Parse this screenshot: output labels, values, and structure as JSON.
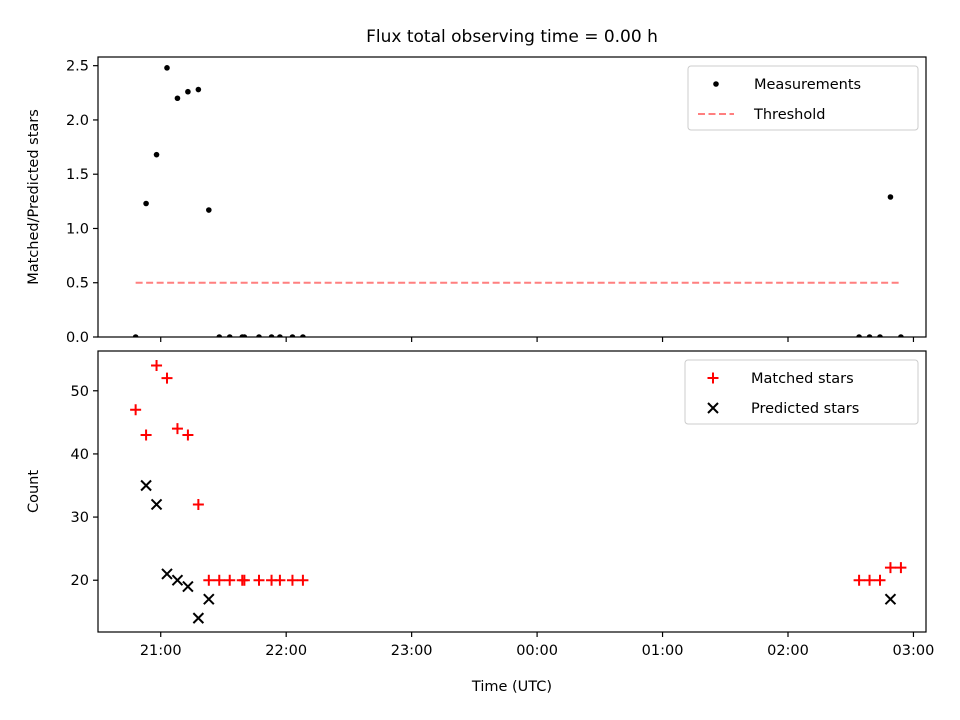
{
  "chart_data": {
    "title": "Flux total observing time = 0.00 h",
    "xlabel": "Time (UTC)",
    "x_range": [
      "20:30",
      "03:06"
    ],
    "x_tick_labels": [
      "21:00",
      "22:00",
      "23:00",
      "00:00",
      "01:00",
      "02:00",
      "03:00"
    ],
    "panels": [
      {
        "type": "scatter",
        "ylabel": "Matched/Predicted stars",
        "ylim": [
          0,
          2.58
        ],
        "y_ticks": [
          "0.0",
          "0.5",
          "1.0",
          "1.5",
          "2.0",
          "2.5"
        ],
        "legend_position": "top-right",
        "series": [
          {
            "name": "Measurements",
            "color": "#000000",
            "marker": "dot",
            "points": [
              [
                "20:48",
                0.0
              ],
              [
                "20:53",
                1.23
              ],
              [
                "20:58",
                1.68
              ],
              [
                "21:03",
                2.48
              ],
              [
                "21:08",
                2.2
              ],
              [
                "21:13",
                2.26
              ],
              [
                "21:18",
                2.28
              ],
              [
                "21:23",
                1.17
              ],
              [
                "21:28",
                0.0
              ],
              [
                "21:33",
                0.0
              ],
              [
                "21:39",
                0.0
              ],
              [
                "21:40",
                0.0
              ],
              [
                "21:47",
                0.0
              ],
              [
                "21:53",
                0.0
              ],
              [
                "21:57",
                0.0
              ],
              [
                "22:03",
                0.0
              ],
              [
                "22:08",
                0.0
              ],
              [
                "02:34",
                0.0
              ],
              [
                "02:39",
                0.0
              ],
              [
                "02:44",
                0.0
              ],
              [
                "02:49",
                1.29
              ],
              [
                "02:54",
                0.0
              ]
            ]
          },
          {
            "name": "Threshold",
            "color": "#ff7f7f",
            "line_style": "dashed",
            "points": [
              [
                "20:48",
                0.5
              ],
              [
                "02:54",
                0.5
              ]
            ]
          }
        ]
      },
      {
        "type": "scatter",
        "ylabel": "Count",
        "ylim": [
          11.8,
          56.3
        ],
        "y_ticks": [
          "20",
          "30",
          "40",
          "50"
        ],
        "legend_position": "top-right",
        "series": [
          {
            "name": "Matched stars",
            "color": "#ff0000",
            "marker": "plus",
            "points": [
              [
                "20:48",
                47
              ],
              [
                "20:53",
                43
              ],
              [
                "20:58",
                54
              ],
              [
                "21:03",
                52
              ],
              [
                "21:08",
                44
              ],
              [
                "21:13",
                43
              ],
              [
                "21:18",
                32
              ],
              [
                "21:23",
                20
              ],
              [
                "21:28",
                20
              ],
              [
                "21:33",
                20
              ],
              [
                "21:39",
                20
              ],
              [
                "21:40",
                20
              ],
              [
                "21:47",
                20
              ],
              [
                "21:53",
                20
              ],
              [
                "21:57",
                20
              ],
              [
                "22:03",
                20
              ],
              [
                "22:08",
                20
              ],
              [
                "02:34",
                20
              ],
              [
                "02:39",
                20
              ],
              [
                "02:44",
                20
              ],
              [
                "02:49",
                22
              ],
              [
                "02:54",
                22
              ]
            ]
          },
          {
            "name": "Predicted stars",
            "color": "#000000",
            "marker": "x",
            "points": [
              [
                "20:53",
                35
              ],
              [
                "20:58",
                32
              ],
              [
                "21:03",
                21
              ],
              [
                "21:08",
                20
              ],
              [
                "21:13",
                19
              ],
              [
                "21:18",
                14
              ],
              [
                "21:23",
                17
              ],
              [
                "02:49",
                17
              ]
            ]
          }
        ]
      }
    ]
  }
}
